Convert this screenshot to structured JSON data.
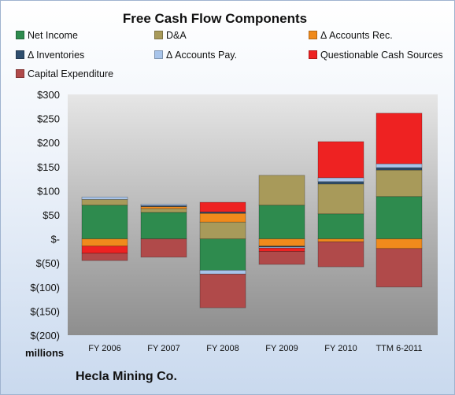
{
  "company": "Hecla Mining Co.",
  "units": "millions",
  "chart_data": {
    "type": "bar",
    "stacked": true,
    "title": "Free Cash Flow Components",
    "categories": [
      "FY 2006",
      "FY 2007",
      "FY 2008",
      "FY 2009",
      "FY 2010",
      "TTM 6-2011"
    ],
    "ylim": [
      -200,
      300
    ],
    "yticks": [
      {
        "value": 300,
        "label": "$300"
      },
      {
        "value": 250,
        "label": "$250"
      },
      {
        "value": 200,
        "label": "$200"
      },
      {
        "value": 150,
        "label": "$150"
      },
      {
        "value": 100,
        "label": "$100"
      },
      {
        "value": 50,
        "label": "$50"
      },
      {
        "value": 0,
        "label": "$-"
      },
      {
        "value": -50,
        "label": "$(50)"
      },
      {
        "value": -100,
        "label": "$(100)"
      },
      {
        "value": -150,
        "label": "$(150)"
      },
      {
        "value": -200,
        "label": "$(200)"
      }
    ],
    "grid": false,
    "legend_position": "top",
    "series": [
      {
        "name": "Net Income",
        "color": "#2e8b4e",
        "values": [
          70,
          55,
          -65,
          70,
          52,
          88
        ]
      },
      {
        "name": "D&A",
        "color": "#a89a5a",
        "values": [
          12,
          8,
          35,
          62,
          62,
          55
        ]
      },
      {
        "name": "Δ Accounts Rec.",
        "color": "#f08a1c",
        "values": [
          -15,
          4,
          18,
          -15,
          -6,
          -20
        ]
      },
      {
        "name": "Δ Inventories",
        "color": "#2f4e6e",
        "values": [
          0,
          2,
          3,
          -2,
          5,
          5
        ]
      },
      {
        "name": "Δ Accounts Pay.",
        "color": "#a8c4ea",
        "values": [
          5,
          3,
          -8,
          -2,
          8,
          8
        ]
      },
      {
        "name": "Questionable Cash Sources",
        "color": "#ee2222",
        "values": [
          -15,
          0,
          20,
          -7,
          75,
          105
        ]
      },
      {
        "name": "Capital Expenditure",
        "color": "#b04a4a",
        "values": [
          -15,
          -38,
          -70,
          -27,
          -52,
          -80
        ]
      }
    ]
  }
}
